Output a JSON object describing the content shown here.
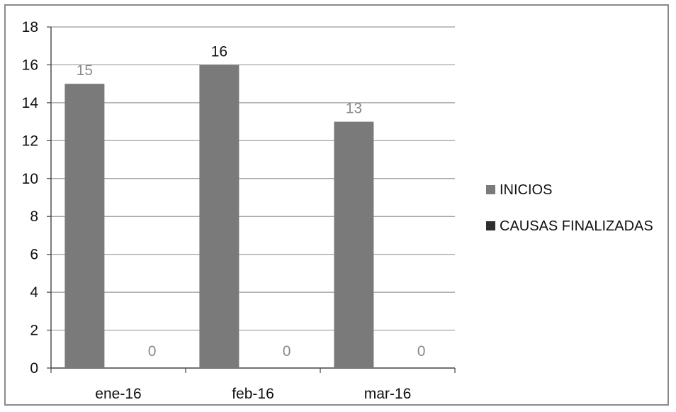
{
  "chart_data": {
    "type": "bar",
    "title": "",
    "xlabel": "",
    "ylabel": "",
    "categories": [
      "ene-16",
      "feb-16",
      "mar-16"
    ],
    "series": [
      {
        "name": "INICIOS",
        "values": [
          15,
          16,
          13
        ],
        "color": "#7a7a7a",
        "labels": [
          "15",
          "16",
          "13"
        ]
      },
      {
        "name": "CAUSAS FINALIZADAS",
        "values": [
          0,
          0,
          0
        ],
        "color": "#2e2e2e",
        "labels": [
          "0",
          "0",
          "0"
        ]
      }
    ],
    "ylim": [
      0,
      18
    ],
    "yticks": [
      "0",
      "2",
      "4",
      "6",
      "8",
      "10",
      "12",
      "14",
      "16",
      "18"
    ],
    "grid": true,
    "legend_position": "right"
  }
}
